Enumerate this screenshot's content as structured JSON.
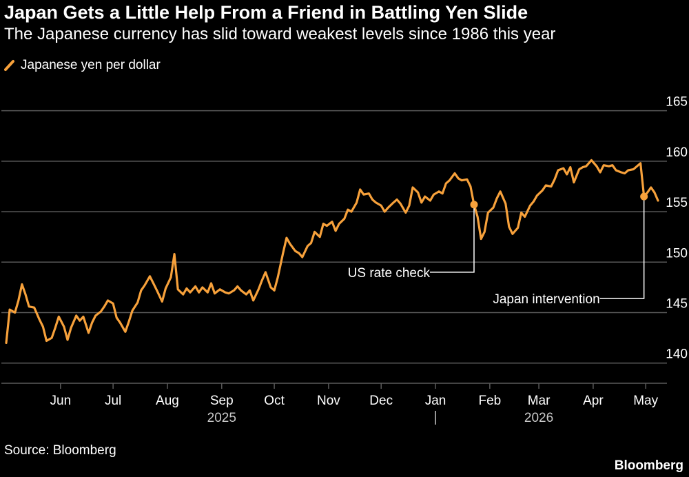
{
  "title": "Japan Gets a Little Help From a Friend in Battling Yen Slide",
  "subtitle": "The Japanese currency has slid toward weakest levels since 1986 this year",
  "source": "Source: Bloomberg",
  "brand": "Bloomberg",
  "colors": {
    "background": "#000000",
    "line": "#F7A13B",
    "grid": "#5a5a5a",
    "text": "#ffffff",
    "muted": "#c8c8c8"
  },
  "chart_data": {
    "type": "line",
    "legend_position": "top-left",
    "grid": true,
    "ylim": [
      138,
      166
    ],
    "y_ticks": [
      140,
      145,
      150,
      155,
      160,
      165
    ],
    "x_ticks": [
      {
        "date": "2025-06-01",
        "label": "Jun"
      },
      {
        "date": "2025-07-01",
        "label": "Jul"
      },
      {
        "date": "2025-08-01",
        "label": "Aug"
      },
      {
        "date": "2025-09-01",
        "label": "Sep"
      },
      {
        "date": "2025-10-01",
        "label": "Oct"
      },
      {
        "date": "2025-11-01",
        "label": "Nov"
      },
      {
        "date": "2025-12-01",
        "label": "Dec"
      },
      {
        "date": "2026-01-01",
        "label": "Jan"
      },
      {
        "date": "2026-02-01",
        "label": "Feb"
      },
      {
        "date": "2026-03-01",
        "label": "Mar"
      },
      {
        "date": "2026-04-01",
        "label": "Apr"
      },
      {
        "date": "2026-05-01",
        "label": "May"
      }
    ],
    "year_labels": [
      {
        "date": "2025-09-01",
        "label": "2025"
      },
      {
        "date": "2026-03-01",
        "label": "2026"
      }
    ],
    "year_divider_date": "2026-01-01",
    "series": [
      {
        "name": "Japanese yen per dollar",
        "points": [
          [
            "2025-05-01",
            142.0
          ],
          [
            "2025-05-03",
            145.3
          ],
          [
            "2025-05-06",
            145.0
          ],
          [
            "2025-05-08",
            146.2
          ],
          [
            "2025-05-10",
            147.8
          ],
          [
            "2025-05-12",
            146.8
          ],
          [
            "2025-05-14",
            145.6
          ],
          [
            "2025-05-17",
            145.5
          ],
          [
            "2025-05-20",
            144.3
          ],
          [
            "2025-05-22",
            143.6
          ],
          [
            "2025-05-24",
            142.2
          ],
          [
            "2025-05-27",
            142.5
          ],
          [
            "2025-05-29",
            143.5
          ],
          [
            "2025-05-31",
            144.6
          ],
          [
            "2025-06-03",
            143.6
          ],
          [
            "2025-06-05",
            142.3
          ],
          [
            "2025-06-07",
            143.5
          ],
          [
            "2025-06-10",
            144.7
          ],
          [
            "2025-06-12",
            144.2
          ],
          [
            "2025-06-14",
            144.6
          ],
          [
            "2025-06-17",
            143.0
          ],
          [
            "2025-06-19",
            144.0
          ],
          [
            "2025-06-21",
            144.7
          ],
          [
            "2025-06-24",
            145.1
          ],
          [
            "2025-06-26",
            145.6
          ],
          [
            "2025-06-28",
            146.2
          ],
          [
            "2025-07-01",
            145.9
          ],
          [
            "2025-07-03",
            144.5
          ],
          [
            "2025-07-05",
            144.0
          ],
          [
            "2025-07-08",
            143.1
          ],
          [
            "2025-07-10",
            144.1
          ],
          [
            "2025-07-12",
            145.2
          ],
          [
            "2025-07-15",
            146.0
          ],
          [
            "2025-07-17",
            147.2
          ],
          [
            "2025-07-19",
            147.7
          ],
          [
            "2025-07-22",
            148.6
          ],
          [
            "2025-07-24",
            147.9
          ],
          [
            "2025-07-26",
            147.2
          ],
          [
            "2025-07-29",
            146.1
          ],
          [
            "2025-07-31",
            147.4
          ],
          [
            "2025-08-03",
            148.5
          ],
          [
            "2025-08-05",
            150.8
          ],
          [
            "2025-08-07",
            147.3
          ],
          [
            "2025-08-10",
            146.8
          ],
          [
            "2025-08-12",
            147.4
          ],
          [
            "2025-08-14",
            147.0
          ],
          [
            "2025-08-17",
            147.6
          ],
          [
            "2025-08-19",
            147.0
          ],
          [
            "2025-08-21",
            147.5
          ],
          [
            "2025-08-24",
            147.0
          ],
          [
            "2025-08-26",
            147.9
          ],
          [
            "2025-08-28",
            146.9
          ],
          [
            "2025-08-31",
            147.3
          ],
          [
            "2025-09-03",
            147.0
          ],
          [
            "2025-09-05",
            146.9
          ],
          [
            "2025-09-08",
            147.2
          ],
          [
            "2025-09-10",
            147.6
          ],
          [
            "2025-09-12",
            147.2
          ],
          [
            "2025-09-15",
            146.8
          ],
          [
            "2025-09-17",
            147.2
          ],
          [
            "2025-09-19",
            146.2
          ],
          [
            "2025-09-22",
            147.3
          ],
          [
            "2025-09-24",
            148.2
          ],
          [
            "2025-09-26",
            149.0
          ],
          [
            "2025-09-29",
            147.5
          ],
          [
            "2025-10-01",
            147.2
          ],
          [
            "2025-10-03",
            148.5
          ],
          [
            "2025-10-06",
            150.9
          ],
          [
            "2025-10-08",
            152.4
          ],
          [
            "2025-10-10",
            151.8
          ],
          [
            "2025-10-13",
            151.1
          ],
          [
            "2025-10-15",
            150.9
          ],
          [
            "2025-10-17",
            150.5
          ],
          [
            "2025-10-20",
            151.6
          ],
          [
            "2025-10-22",
            151.9
          ],
          [
            "2025-10-24",
            153.0
          ],
          [
            "2025-10-27",
            152.5
          ],
          [
            "2025-10-29",
            153.8
          ],
          [
            "2025-10-31",
            153.6
          ],
          [
            "2025-11-03",
            154.0
          ],
          [
            "2025-11-05",
            153.1
          ],
          [
            "2025-11-07",
            153.8
          ],
          [
            "2025-11-10",
            154.3
          ],
          [
            "2025-11-12",
            155.2
          ],
          [
            "2025-11-14",
            155.0
          ],
          [
            "2025-11-17",
            155.9
          ],
          [
            "2025-11-19",
            157.2
          ],
          [
            "2025-11-21",
            156.7
          ],
          [
            "2025-11-24",
            156.8
          ],
          [
            "2025-11-26",
            156.2
          ],
          [
            "2025-11-28",
            155.9
          ],
          [
            "2025-12-01",
            155.6
          ],
          [
            "2025-12-03",
            155.0
          ],
          [
            "2025-12-05",
            155.4
          ],
          [
            "2025-12-08",
            155.9
          ],
          [
            "2025-12-10",
            156.2
          ],
          [
            "2025-12-12",
            155.8
          ],
          [
            "2025-12-15",
            154.9
          ],
          [
            "2025-12-17",
            155.6
          ],
          [
            "2025-12-19",
            157.4
          ],
          [
            "2025-12-22",
            156.9
          ],
          [
            "2025-12-24",
            155.9
          ],
          [
            "2025-12-26",
            156.5
          ],
          [
            "2025-12-29",
            156.1
          ],
          [
            "2025-12-31",
            156.7
          ],
          [
            "2026-01-03",
            157.0
          ],
          [
            "2026-01-05",
            156.8
          ],
          [
            "2026-01-07",
            157.8
          ],
          [
            "2026-01-09",
            158.1
          ],
          [
            "2026-01-12",
            158.8
          ],
          [
            "2026-01-14",
            158.3
          ],
          [
            "2026-01-16",
            158.1
          ],
          [
            "2026-01-19",
            158.2
          ],
          [
            "2026-01-21",
            157.5
          ],
          [
            "2026-01-23",
            155.7
          ],
          [
            "2026-01-25",
            154.5
          ],
          [
            "2026-01-27",
            152.3
          ],
          [
            "2026-01-29",
            153.0
          ],
          [
            "2026-01-31",
            154.9
          ],
          [
            "2026-02-03",
            155.4
          ],
          [
            "2026-02-05",
            156.3
          ],
          [
            "2026-02-07",
            157.0
          ],
          [
            "2026-02-10",
            155.8
          ],
          [
            "2026-02-12",
            153.5
          ],
          [
            "2026-02-14",
            152.8
          ],
          [
            "2026-02-17",
            153.4
          ],
          [
            "2026-02-19",
            154.9
          ],
          [
            "2026-02-21",
            154.5
          ],
          [
            "2026-02-24",
            155.6
          ],
          [
            "2026-02-26",
            156.0
          ],
          [
            "2026-02-28",
            156.6
          ],
          [
            "2026-03-03",
            157.1
          ],
          [
            "2026-03-05",
            157.6
          ],
          [
            "2026-03-08",
            157.5
          ],
          [
            "2026-03-10",
            158.2
          ],
          [
            "2026-03-12",
            159.1
          ],
          [
            "2026-03-15",
            159.3
          ],
          [
            "2026-03-17",
            158.7
          ],
          [
            "2026-03-19",
            159.4
          ],
          [
            "2026-03-21",
            157.9
          ],
          [
            "2026-03-24",
            159.2
          ],
          [
            "2026-03-26",
            159.4
          ],
          [
            "2026-03-28",
            159.5
          ],
          [
            "2026-03-31",
            160.1
          ],
          [
            "2026-04-03",
            159.5
          ],
          [
            "2026-04-05",
            158.9
          ],
          [
            "2026-04-07",
            159.6
          ],
          [
            "2026-04-10",
            159.5
          ],
          [
            "2026-04-12",
            159.6
          ],
          [
            "2026-04-14",
            159.1
          ],
          [
            "2026-04-17",
            158.9
          ],
          [
            "2026-04-19",
            158.8
          ],
          [
            "2026-04-21",
            159.1
          ],
          [
            "2026-04-24",
            159.2
          ],
          [
            "2026-04-26",
            159.5
          ],
          [
            "2026-04-28",
            159.8
          ],
          [
            "2026-04-30",
            156.5
          ],
          [
            "2026-05-02",
            156.9
          ],
          [
            "2026-05-04",
            157.4
          ],
          [
            "2026-05-06",
            156.9
          ],
          [
            "2026-05-08",
            156.1
          ]
        ]
      }
    ],
    "annotations": [
      {
        "text": "US rate check",
        "date": "2026-01-23",
        "value": 155.7,
        "label_value": 149.0,
        "side": "left"
      },
      {
        "text": "Japan intervention",
        "date": "2026-04-30",
        "value": 156.5,
        "label_value": 146.4,
        "side": "left"
      }
    ]
  }
}
